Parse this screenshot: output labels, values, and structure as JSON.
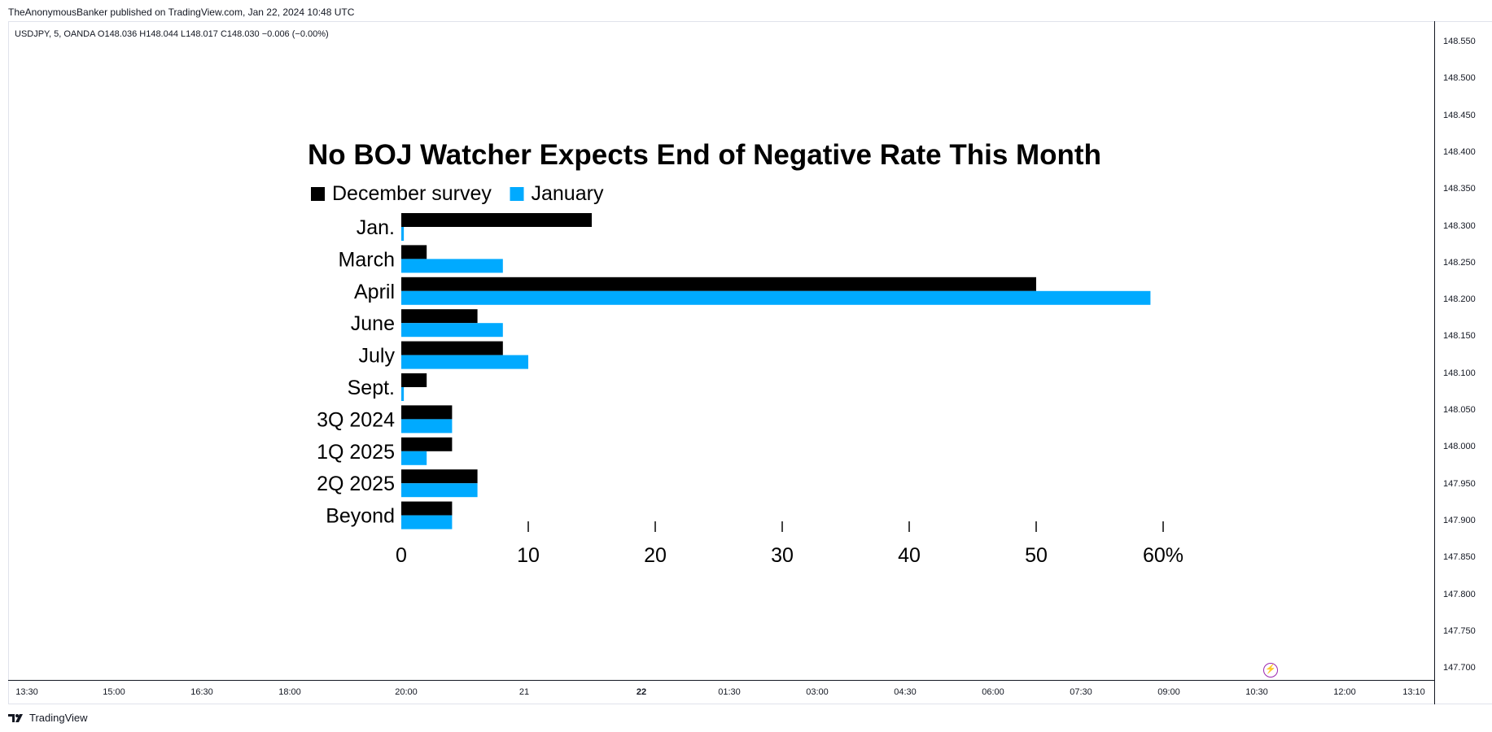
{
  "header": {
    "published_text": "TheAnonymousBanker published on TradingView.com, Jan 22, 2024 10:48 UTC"
  },
  "symbol": {
    "info": "USDJPY, 5, OANDA  O148.036  H148.044  L148.017  C148.030  −0.006 (−0.00%)"
  },
  "price_axis": {
    "labels": [
      "148.550",
      "148.500",
      "148.450",
      "148.400",
      "148.350",
      "148.300",
      "148.250",
      "148.200",
      "148.150",
      "148.100",
      "148.050",
      "148.000",
      "147.950",
      "147.900",
      "147.850",
      "147.800",
      "147.750",
      "147.700"
    ]
  },
  "time_axis": {
    "labels": [
      "13:30",
      "15:00",
      "16:30",
      "18:00",
      "20:00",
      "21",
      "22",
      "01:30",
      "03:00",
      "04:30",
      "06:00",
      "07:30",
      "09:00",
      "10:30",
      "12:00",
      "13:10"
    ],
    "bold_label": "22"
  },
  "footer": {
    "brand": "TradingView"
  },
  "icons": {
    "bolt": "lightning-bolt-icon",
    "logo": "tradingview-logo-icon"
  },
  "colors": {
    "december": "#000000",
    "january": "#00aaff",
    "bolt": "#9c27b0"
  },
  "chart_data": {
    "type": "bar",
    "orientation": "horizontal",
    "title": "No BOJ Watcher Expects End of Negative Rate This Month",
    "categories": [
      "Jan.",
      "March",
      "April",
      "June",
      "July",
      "Sept.",
      "3Q 2024",
      "1Q 2025",
      "2Q 2025",
      "Beyond"
    ],
    "series": [
      {
        "name": "December survey",
        "color": "#000000",
        "values": [
          15,
          2,
          50,
          6,
          8,
          2,
          4,
          4,
          6,
          4
        ]
      },
      {
        "name": "January",
        "color": "#00aaff",
        "values": [
          0.2,
          8,
          59,
          8,
          10,
          0.2,
          4,
          2,
          6,
          4
        ]
      }
    ],
    "xlim": [
      0,
      60
    ],
    "xticks": [
      "0",
      "10",
      "20",
      "30",
      "40",
      "50",
      "60%"
    ],
    "legend_position": "top-left"
  }
}
